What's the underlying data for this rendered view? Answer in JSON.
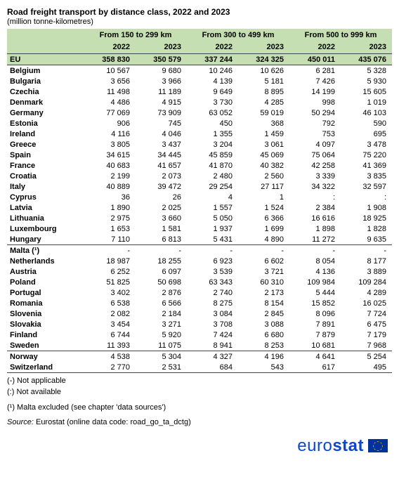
{
  "title": "Road freight transport by distance class, 2022 and 2023",
  "subtitle": "(million tonne-kilometres)",
  "table": {
    "groups": [
      {
        "label": "From 150 to 299 km"
      },
      {
        "label": "From 300 to 499 km"
      },
      {
        "label": "From 500 to 999 km"
      }
    ],
    "years": [
      "2022",
      "2023",
      "2022",
      "2023",
      "2022",
      "2023"
    ],
    "eu_row": {
      "label": "EU",
      "values": [
        "358 830",
        "350 579",
        "337 244",
        "324 325",
        "450 011",
        "435 076"
      ]
    },
    "rows": [
      {
        "label": "Belgium",
        "values": [
          "10 567",
          "9 680",
          "10 246",
          "10 626",
          "6 281",
          "5 328"
        ]
      },
      {
        "label": "Bulgaria",
        "values": [
          "3 656",
          "3 966",
          "4 139",
          "5 181",
          "7 426",
          "5 930"
        ]
      },
      {
        "label": "Czechia",
        "values": [
          "11 498",
          "11 189",
          "9 649",
          "8 895",
          "14 199",
          "15 605"
        ]
      },
      {
        "label": "Denmark",
        "values": [
          "4 486",
          "4 915",
          "3 730",
          "4 285",
          "998",
          "1 019"
        ]
      },
      {
        "label": "Germany",
        "values": [
          "77 069",
          "73 909",
          "63 052",
          "59 019",
          "50 294",
          "46 103"
        ]
      },
      {
        "label": "Estonia",
        "values": [
          "906",
          "745",
          "450",
          "368",
          "792",
          "590"
        ]
      },
      {
        "label": "Ireland",
        "values": [
          "4 116",
          "4 046",
          "1 355",
          "1 459",
          "753",
          "695"
        ]
      },
      {
        "label": "Greece",
        "values": [
          "3 805",
          "3 437",
          "3 204",
          "3 061",
          "4 097",
          "3 478"
        ]
      },
      {
        "label": "Spain",
        "values": [
          "34 615",
          "34 445",
          "45 859",
          "45 069",
          "75 064",
          "75 220"
        ]
      },
      {
        "label": "France",
        "values": [
          "40 683",
          "41 657",
          "41 870",
          "40 382",
          "42 258",
          "41 369"
        ]
      },
      {
        "label": "Croatia",
        "values": [
          "2 199",
          "2 073",
          "2 480",
          "2 560",
          "3 339",
          "3 835"
        ]
      },
      {
        "label": "Italy",
        "values": [
          "40 889",
          "39 472",
          "29 254",
          "27 117",
          "34 322",
          "32 597"
        ]
      },
      {
        "label": "Cyprus",
        "values": [
          "36",
          "26",
          "4",
          "1",
          ":",
          ":"
        ]
      },
      {
        "label": "Latvia",
        "values": [
          "1 890",
          "2 025",
          "1 557",
          "1 524",
          "2 384",
          "1 908"
        ]
      },
      {
        "label": "Lithuania",
        "values": [
          "2 975",
          "3 660",
          "5 050",
          "6 366",
          "16 616",
          "18 925"
        ]
      },
      {
        "label": "Luxembourg",
        "values": [
          "1 653",
          "1 581",
          "1 937",
          "1 699",
          "1 898",
          "1 828"
        ]
      },
      {
        "label": "Hungary",
        "values": [
          "7 110",
          "6 813",
          "5 431",
          "4 890",
          "11 272",
          "9 635"
        ],
        "sep": true
      },
      {
        "label": "Malta (¹)",
        "values": [
          "-",
          "-",
          "-",
          "-",
          "-",
          "-"
        ]
      },
      {
        "label": "Netherlands",
        "values": [
          "18 987",
          "18 255",
          "6 923",
          "6 602",
          "8 054",
          "8 177"
        ]
      },
      {
        "label": "Austria",
        "values": [
          "6 252",
          "6 097",
          "3 539",
          "3 721",
          "4 136",
          "3 889"
        ]
      },
      {
        "label": "Poland",
        "values": [
          "51 825",
          "50 698",
          "63 343",
          "60 310",
          "109 984",
          "109 284"
        ]
      },
      {
        "label": "Portugal",
        "values": [
          "3 402",
          "2 876",
          "2 740",
          "2 173",
          "5 444",
          "4 289"
        ]
      },
      {
        "label": "Romania",
        "values": [
          "6 538",
          "6 566",
          "8 275",
          "8 154",
          "15 852",
          "16 025"
        ]
      },
      {
        "label": "Slovenia",
        "values": [
          "2 082",
          "2 184",
          "3 084",
          "2 845",
          "8 096",
          "7 724"
        ]
      },
      {
        "label": "Slovakia",
        "values": [
          "3 454",
          "3 271",
          "3 708",
          "3 088",
          "7 891",
          "6 475"
        ]
      },
      {
        "label": "Finland",
        "values": [
          "6 744",
          "5 920",
          "7 424",
          "6 680",
          "7 879",
          "7 179"
        ]
      },
      {
        "label": "Sweden",
        "values": [
          "11 393",
          "11 075",
          "8 941",
          "8 253",
          "10 681",
          "7 968"
        ],
        "sep": true
      },
      {
        "label": "Norway",
        "values": [
          "4 538",
          "5 304",
          "4 327",
          "4 196",
          "4 641",
          "5 254"
        ]
      },
      {
        "label": "Switzerland",
        "values": [
          "2 770",
          "2 531",
          "684",
          "543",
          "617",
          "495"
        ],
        "last": true
      }
    ]
  },
  "notes": [
    "(-) Not applicable",
    "(:) Not available",
    "(¹) Malta excluded (see chapter 'data sources')"
  ],
  "source_label": "Source:",
  "source_text": " Eurostat (online data code: road_go_ta_dctg)",
  "logo_text_light": "euro",
  "logo_text_bold": "stat",
  "colors": {
    "header_bg": "#c5dfb3",
    "border": "#444444",
    "logo_blue": "#0e47cb",
    "flag_bg": "#003399",
    "flag_star": "#ffcc00"
  }
}
